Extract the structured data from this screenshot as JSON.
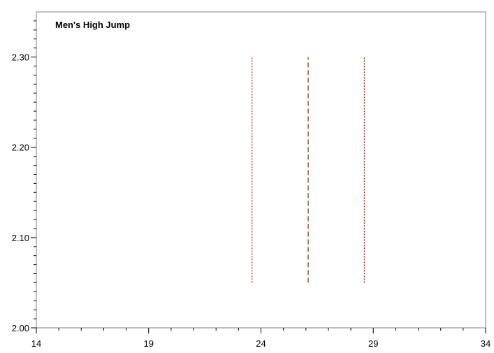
{
  "chart_data": {
    "type": "line",
    "title": "Men's High Jump",
    "xlabel": "",
    "ylabel": "",
    "xlim": [
      14,
      34
    ],
    "ylim": [
      2.0,
      2.35
    ],
    "x_ticks": [
      "14",
      "19",
      "24",
      "29",
      "34"
    ],
    "y_ticks": [
      "2.00",
      "2.10",
      "2.20",
      "2.30"
    ],
    "grid": false,
    "series": [
      {
        "x": 23.6,
        "y_from": 2.05,
        "y_to": 2.3,
        "style": "dotted",
        "color": "#8b2500"
      },
      {
        "x": 26.1,
        "y_from": 2.05,
        "y_to": 2.3,
        "style": "dashed",
        "color": "#8b2500"
      },
      {
        "x": 28.6,
        "y_from": 2.05,
        "y_to": 2.3,
        "style": "dotted",
        "color": "#8b2500"
      }
    ]
  }
}
